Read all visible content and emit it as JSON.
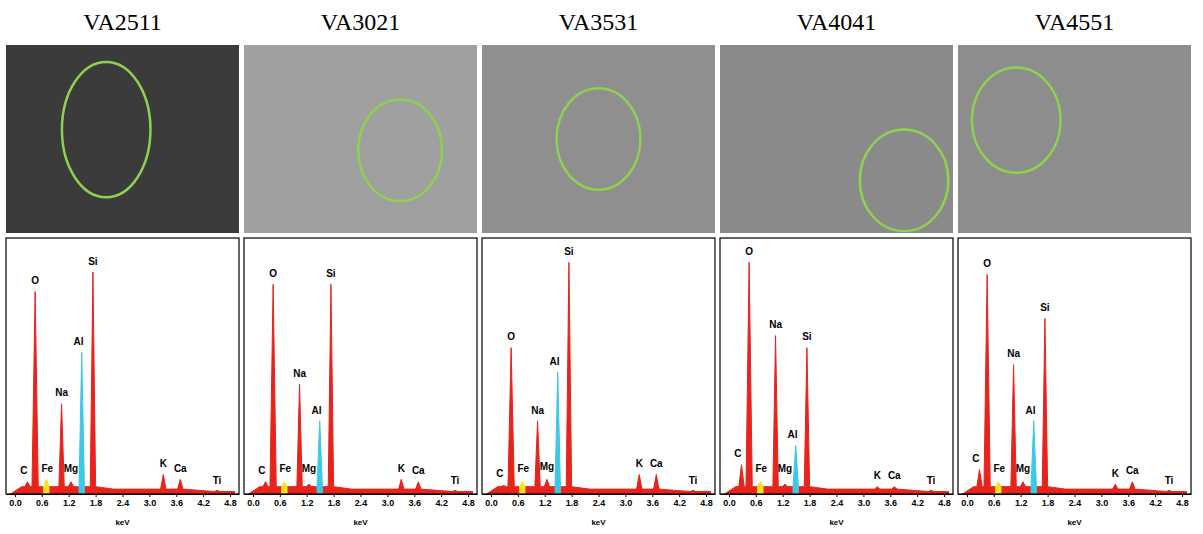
{
  "chart_data": [
    {
      "type": "area",
      "title": "VA2511",
      "x_label": "keV",
      "xlim": [
        -0.2,
        5.0
      ],
      "ylim": [
        0,
        105
      ],
      "xticks": [
        {
          "value": 0,
          "label": "0.0"
        },
        0.6,
        1.2,
        1.8,
        2.4,
        {
          "value": 3,
          "label": "3.0"
        },
        3.6,
        4.2,
        4.8
      ],
      "tick_labels": "x",
      "grid": false,
      "x": [
        -0.1,
        0.15,
        0.22,
        0.28,
        0.34,
        0.38,
        0.45,
        0.52,
        0.6,
        0.64,
        0.7,
        0.76,
        0.98,
        1.04,
        1.1,
        1.19,
        1.25,
        1.31,
        1.43,
        1.49,
        1.55,
        1.68,
        1.74,
        1.8,
        2.2,
        3.25,
        3.31,
        3.37,
        3.63,
        3.69,
        3.75,
        4.45,
        4.51,
        4.57,
        4.9
      ],
      "series": [
        {
          "color": "#e8231c",
          "values": [
            0,
            3,
            3,
            5,
            3,
            3,
            83,
            3,
            3,
            3,
            3,
            3,
            3,
            37,
            3,
            3,
            5,
            3,
            3,
            3,
            3,
            3,
            91,
            3,
            2,
            2,
            8,
            2,
            2,
            6,
            2,
            1,
            1.5,
            1,
            1
          ]
        },
        {
          "color": "#3cc8e8",
          "values": [
            null,
            null,
            null,
            null,
            null,
            null,
            null,
            null,
            null,
            null,
            null,
            null,
            null,
            null,
            null,
            null,
            null,
            null,
            3,
            58,
            3,
            null,
            null,
            null,
            null,
            null,
            null,
            null,
            null,
            null,
            null,
            null,
            null,
            null,
            null
          ]
        },
        {
          "color": "#f7e31b",
          "values": [
            null,
            null,
            null,
            null,
            null,
            null,
            null,
            null,
            null,
            3,
            6,
            3,
            null,
            null,
            null,
            null,
            null,
            null,
            null,
            null,
            null,
            null,
            null,
            null,
            null,
            null,
            null,
            null,
            null,
            null,
            null,
            null,
            null,
            null,
            null
          ]
        }
      ],
      "annotations": [
        {
          "text": "C",
          "x": 0.2,
          "y": 8
        },
        {
          "text": "O",
          "x": 0.45,
          "y": 86
        },
        {
          "text": "Fe",
          "x": 0.72,
          "y": 9
        },
        {
          "text": "Na",
          "x": 1.04,
          "y": 40
        },
        {
          "text": "Mg",
          "x": 1.25,
          "y": 9
        },
        {
          "text": "Al",
          "x": 1.42,
          "y": 61
        },
        {
          "text": "Si",
          "x": 1.74,
          "y": 94
        },
        {
          "text": "K",
          "x": 3.31,
          "y": 11
        },
        {
          "text": "Ca",
          "x": 3.69,
          "y": 9
        },
        {
          "text": "Ti",
          "x": 4.51,
          "y": 4
        }
      ]
    },
    {
      "type": "area",
      "title": "VA3021",
      "x_label": "keV",
      "xlim": [
        -0.2,
        5.0
      ],
      "ylim": [
        0,
        105
      ],
      "xticks": [
        {
          "value": 0,
          "label": "0.0"
        },
        0.6,
        1.2,
        1.8,
        2.4,
        {
          "value": 3,
          "label": "3.0"
        },
        3.6,
        4.2,
        4.8
      ],
      "tick_labels": "x",
      "grid": false,
      "x": [
        -0.1,
        0.15,
        0.22,
        0.28,
        0.34,
        0.38,
        0.45,
        0.52,
        0.6,
        0.64,
        0.7,
        0.76,
        0.98,
        1.04,
        1.1,
        1.19,
        1.25,
        1.31,
        1.43,
        1.49,
        1.55,
        1.68,
        1.74,
        1.8,
        2.2,
        3.25,
        3.31,
        3.37,
        3.63,
        3.69,
        3.75,
        4.45,
        4.51,
        4.57,
        4.9
      ],
      "series": [
        {
          "color": "#e8231c",
          "values": [
            0,
            3,
            3,
            5,
            3,
            3,
            86,
            3,
            3,
            3,
            3,
            3,
            3,
            45,
            3,
            3,
            4,
            3,
            3,
            3,
            3,
            3,
            86,
            3,
            2,
            2,
            6,
            2,
            2,
            5,
            2,
            1,
            1.5,
            1,
            1
          ]
        },
        {
          "color": "#3cc8e8",
          "values": [
            null,
            null,
            null,
            null,
            null,
            null,
            null,
            null,
            null,
            null,
            null,
            null,
            null,
            null,
            null,
            null,
            null,
            null,
            3,
            30,
            3,
            null,
            null,
            null,
            null,
            null,
            null,
            null,
            null,
            null,
            null,
            null,
            null,
            null,
            null
          ]
        },
        {
          "color": "#f7e31b",
          "values": [
            null,
            null,
            null,
            null,
            null,
            null,
            null,
            null,
            null,
            3,
            5,
            3,
            null,
            null,
            null,
            null,
            null,
            null,
            null,
            null,
            null,
            null,
            null,
            null,
            null,
            null,
            null,
            null,
            null,
            null,
            null,
            null,
            null,
            null,
            null
          ]
        }
      ],
      "annotations": [
        {
          "text": "C",
          "x": 0.2,
          "y": 8
        },
        {
          "text": "O",
          "x": 0.45,
          "y": 89
        },
        {
          "text": "Fe",
          "x": 0.72,
          "y": 9
        },
        {
          "text": "Na",
          "x": 1.04,
          "y": 48
        },
        {
          "text": "Mg",
          "x": 1.25,
          "y": 9
        },
        {
          "text": "Al",
          "x": 1.42,
          "y": 33
        },
        {
          "text": "Si",
          "x": 1.74,
          "y": 89
        },
        {
          "text": "K",
          "x": 3.31,
          "y": 9
        },
        {
          "text": "Ca",
          "x": 3.69,
          "y": 8
        },
        {
          "text": "Ti",
          "x": 4.51,
          "y": 4
        }
      ]
    },
    {
      "type": "area",
      "title": "VA3531",
      "x_label": "keV",
      "xlim": [
        -0.2,
        5.0
      ],
      "ylim": [
        0,
        105
      ],
      "xticks": [
        {
          "value": 0,
          "label": "0.0"
        },
        0.6,
        1.2,
        1.8,
        2.4,
        {
          "value": 3,
          "label": "3.0"
        },
        3.6,
        4.2,
        4.8
      ],
      "tick_labels": "x",
      "grid": false,
      "x": [
        -0.1,
        0.15,
        0.22,
        0.28,
        0.34,
        0.38,
        0.45,
        0.52,
        0.6,
        0.64,
        0.7,
        0.76,
        0.98,
        1.04,
        1.1,
        1.19,
        1.25,
        1.31,
        1.43,
        1.49,
        1.55,
        1.68,
        1.74,
        1.8,
        2.2,
        3.25,
        3.31,
        3.37,
        3.63,
        3.69,
        3.75,
        4.45,
        4.51,
        4.57,
        4.9
      ],
      "series": [
        {
          "color": "#e8231c",
          "values": [
            0,
            3,
            3,
            3.5,
            3,
            3,
            60,
            3,
            3,
            3,
            3,
            3,
            3,
            30,
            3,
            3,
            6,
            3,
            3,
            3,
            3,
            3,
            95,
            3,
            2,
            2,
            8,
            2,
            2,
            8,
            2,
            1,
            1.5,
            1,
            1
          ]
        },
        {
          "color": "#3cc8e8",
          "values": [
            null,
            null,
            null,
            null,
            null,
            null,
            null,
            null,
            null,
            null,
            null,
            null,
            null,
            null,
            null,
            null,
            null,
            null,
            3,
            50,
            3,
            null,
            null,
            null,
            null,
            null,
            null,
            null,
            null,
            null,
            null,
            null,
            null,
            null,
            null
          ]
        },
        {
          "color": "#f7e31b",
          "values": [
            null,
            null,
            null,
            null,
            null,
            null,
            null,
            null,
            null,
            3,
            5,
            3,
            null,
            null,
            null,
            null,
            null,
            null,
            null,
            null,
            null,
            null,
            null,
            null,
            null,
            null,
            null,
            null,
            null,
            null,
            null,
            null,
            null,
            null,
            null
          ]
        }
      ],
      "annotations": [
        {
          "text": "C",
          "x": 0.2,
          "y": 7
        },
        {
          "text": "O",
          "x": 0.45,
          "y": 63
        },
        {
          "text": "Fe",
          "x": 0.72,
          "y": 9
        },
        {
          "text": "Na",
          "x": 1.04,
          "y": 33
        },
        {
          "text": "Mg",
          "x": 1.25,
          "y": 10
        },
        {
          "text": "Al",
          "x": 1.42,
          "y": 53
        },
        {
          "text": "Si",
          "x": 1.74,
          "y": 98
        },
        {
          "text": "K",
          "x": 3.31,
          "y": 11
        },
        {
          "text": "Ca",
          "x": 3.69,
          "y": 11
        },
        {
          "text": "Ti",
          "x": 4.51,
          "y": 4
        }
      ]
    },
    {
      "type": "area",
      "title": "VA4041",
      "x_label": "keV",
      "xlim": [
        -0.2,
        5.0
      ],
      "ylim": [
        0,
        105
      ],
      "xticks": [
        {
          "value": 0,
          "label": "0.0"
        },
        0.6,
        1.2,
        1.8,
        2.4,
        {
          "value": 3,
          "label": "3.0"
        },
        3.6,
        4.2,
        4.8
      ],
      "tick_labels": "x",
      "grid": false,
      "x": [
        -0.1,
        0.15,
        0.22,
        0.28,
        0.34,
        0.38,
        0.45,
        0.52,
        0.6,
        0.64,
        0.7,
        0.76,
        0.98,
        1.04,
        1.1,
        1.19,
        1.25,
        1.31,
        1.43,
        1.49,
        1.55,
        1.68,
        1.74,
        1.8,
        2.2,
        3.25,
        3.31,
        3.37,
        3.63,
        3.69,
        3.75,
        4.45,
        4.51,
        4.57,
        4.9
      ],
      "series": [
        {
          "color": "#e8231c",
          "values": [
            0,
            3,
            3,
            12,
            3,
            3,
            95,
            3,
            3,
            3,
            3,
            3,
            3,
            65,
            3,
            3,
            4,
            3,
            3,
            3,
            3,
            3,
            60,
            3,
            2,
            2,
            3,
            2,
            2,
            3,
            2,
            1,
            1.5,
            1,
            1
          ]
        },
        {
          "color": "#3cc8e8",
          "values": [
            null,
            null,
            null,
            null,
            null,
            null,
            null,
            null,
            null,
            null,
            null,
            null,
            null,
            null,
            null,
            null,
            null,
            null,
            3,
            20,
            3,
            null,
            null,
            null,
            null,
            null,
            null,
            null,
            null,
            null,
            null,
            null,
            null,
            null,
            null
          ]
        },
        {
          "color": "#f7e31b",
          "values": [
            null,
            null,
            null,
            null,
            null,
            null,
            null,
            null,
            null,
            3,
            5,
            3,
            null,
            null,
            null,
            null,
            null,
            null,
            null,
            null,
            null,
            null,
            null,
            null,
            null,
            null,
            null,
            null,
            null,
            null,
            null,
            null,
            null,
            null,
            null
          ]
        }
      ],
      "annotations": [
        {
          "text": "C",
          "x": 0.2,
          "y": 15
        },
        {
          "text": "O",
          "x": 0.45,
          "y": 98
        },
        {
          "text": "Fe",
          "x": 0.72,
          "y": 9
        },
        {
          "text": "Na",
          "x": 1.04,
          "y": 68
        },
        {
          "text": "Mg",
          "x": 1.25,
          "y": 9
        },
        {
          "text": "Al",
          "x": 1.42,
          "y": 23
        },
        {
          "text": "Si",
          "x": 1.74,
          "y": 63
        },
        {
          "text": "K",
          "x": 3.31,
          "y": 6
        },
        {
          "text": "Ca",
          "x": 3.69,
          "y": 6
        },
        {
          "text": "Ti",
          "x": 4.51,
          "y": 4
        }
      ]
    },
    {
      "type": "area",
      "title": "VA4551",
      "x_label": "keV",
      "xlim": [
        -0.2,
        5.0
      ],
      "ylim": [
        0,
        105
      ],
      "xticks": [
        {
          "value": 0,
          "label": "0.0"
        },
        0.6,
        1.2,
        1.8,
        2.4,
        {
          "value": 3,
          "label": "3.0"
        },
        3.6,
        4.2,
        4.8
      ],
      "tick_labels": "x",
      "grid": false,
      "x": [
        -0.1,
        0.15,
        0.22,
        0.28,
        0.34,
        0.38,
        0.45,
        0.52,
        0.6,
        0.64,
        0.7,
        0.76,
        0.98,
        1.04,
        1.1,
        1.19,
        1.25,
        1.31,
        1.43,
        1.49,
        1.55,
        1.68,
        1.74,
        1.8,
        2.2,
        3.25,
        3.31,
        3.37,
        3.63,
        3.69,
        3.75,
        4.45,
        4.51,
        4.57,
        4.9
      ],
      "series": [
        {
          "color": "#e8231c",
          "values": [
            0,
            3,
            3,
            10,
            3,
            3,
            90,
            3,
            3,
            3,
            3,
            3,
            3,
            53,
            3,
            3,
            5,
            3,
            3,
            3,
            3,
            3,
            72,
            3,
            2,
            2,
            4,
            2,
            2,
            5,
            2,
            1,
            1.5,
            1,
            1
          ]
        },
        {
          "color": "#3cc8e8",
          "values": [
            null,
            null,
            null,
            null,
            null,
            null,
            null,
            null,
            null,
            null,
            null,
            null,
            null,
            null,
            null,
            null,
            null,
            null,
            3,
            30,
            3,
            null,
            null,
            null,
            null,
            null,
            null,
            null,
            null,
            null,
            null,
            null,
            null,
            null,
            null
          ]
        },
        {
          "color": "#f7e31b",
          "values": [
            null,
            null,
            null,
            null,
            null,
            null,
            null,
            null,
            null,
            3,
            5,
            3,
            null,
            null,
            null,
            null,
            null,
            null,
            null,
            null,
            null,
            null,
            null,
            null,
            null,
            null,
            null,
            null,
            null,
            null,
            null,
            null,
            null,
            null,
            null
          ]
        }
      ],
      "annotations": [
        {
          "text": "C",
          "x": 0.2,
          "y": 13
        },
        {
          "text": "O",
          "x": 0.45,
          "y": 93
        },
        {
          "text": "Fe",
          "x": 0.72,
          "y": 9
        },
        {
          "text": "Na",
          "x": 1.04,
          "y": 56
        },
        {
          "text": "Mg",
          "x": 1.25,
          "y": 9
        },
        {
          "text": "Al",
          "x": 1.42,
          "y": 33
        },
        {
          "text": "Si",
          "x": 1.74,
          "y": 75
        },
        {
          "text": "K",
          "x": 3.31,
          "y": 7
        },
        {
          "text": "Ca",
          "x": 3.69,
          "y": 8
        },
        {
          "text": "Ti",
          "x": 4.51,
          "y": 4
        }
      ]
    }
  ]
}
